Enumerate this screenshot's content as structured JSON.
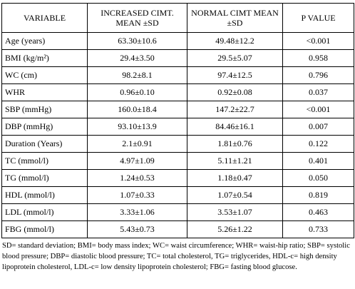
{
  "table": {
    "headers": [
      "VARIABLE",
      "INCREASED CIMT. MEAN ±SD",
      "NORMAL CIMT MEAN ±SD",
      "P VALUE"
    ],
    "rows": [
      [
        "Age (years)",
        "63.30±10.6",
        "49.48±12.2",
        "<0.001"
      ],
      [
        "BMI (kg/m²)",
        "29.4±3.50",
        "29.5±5.07",
        "0.958"
      ],
      [
        "WC (cm)",
        "98.2±8.1",
        "97.4±12.5",
        "0.796"
      ],
      [
        "WHR",
        "0.96±0.10",
        "0.92±0.08",
        "0.037"
      ],
      [
        "SBP (mmHg)",
        "160.0±18.4",
        "147.2±22.7",
        "<0.001"
      ],
      [
        "DBP (mmHg)",
        "93.10±13.9",
        "84.46±16.1",
        "0.007"
      ],
      [
        "Duration (Years)",
        "2.1±0.91",
        "1.81±0.76",
        "0.122"
      ],
      [
        "TC (mmol/l)",
        "4.97±1.09",
        "5.11±1.21",
        "0.401"
      ],
      [
        "TG (mmol/l)",
        "1.24±0.53",
        "1.18±0.47",
        "0.050"
      ],
      [
        "HDL (mmol/l)",
        "1.07±0.33",
        "1.07±0.54",
        "0.819"
      ],
      [
        "LDL (mmol/l)",
        "3.33±1.06",
        "3.53±1.07",
        "0.463"
      ],
      [
        "FBG (mmol/l)",
        "5.43±0.73",
        "5.26±1.22",
        "0.733"
      ]
    ]
  },
  "footnote": "SD= standard deviation; BMI= body mass index; WC= waist circumference; WHR= waist-hip ratio; SBP= systolic blood pressure; DBP= diastolic blood pressure; TC= total cholesterol, TG= triglycerides, HDL-c= high density lipoprotein cholesterol, LDL-c= low density lipoprotein cholesterol; FBG= fasting blood glucose."
}
